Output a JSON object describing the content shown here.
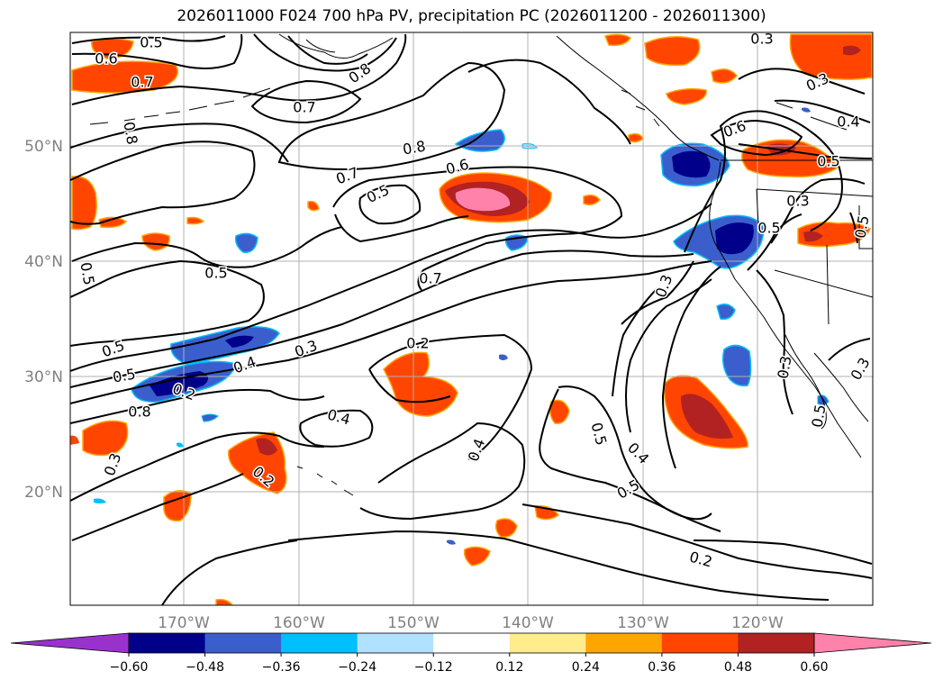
{
  "title": "2026011000 F024 700 hPa PV, precipitation PC (2026011200 - 2026011300)",
  "map": {
    "lat_ticks": [
      "50°N",
      "40°N",
      "30°N",
      "20°N"
    ],
    "lon_ticks": [
      "170°W",
      "160°W",
      "150°W",
      "140°W",
      "130°W",
      "120°W"
    ],
    "contour_labels": [
      "0.5",
      "0.6",
      "0.7",
      "0.8",
      "0.7",
      "0.8",
      "0.6",
      "0.7",
      "0.5",
      "0.5",
      "0.5",
      "0.5",
      "0.5",
      "0.4",
      "0.3",
      "0.2",
      "0.4",
      "0.2",
      "0.4",
      "0.5",
      "0.4",
      "0.5",
      "0.3",
      "0.3",
      "0.6",
      "0.4",
      "0.3",
      "0.3",
      "0.5",
      "0.5",
      "0.3",
      "0.2",
      "0.3",
      "0.7",
      "0.2",
      "0.5",
      "0.3",
      "0.8",
      "0.8",
      "0.5"
    ]
  },
  "colorbar": {
    "ticks": [
      "−0.60",
      "−0.48",
      "−0.36",
      "−0.24",
      "−0.12",
      "0.12",
      "0.24",
      "0.36",
      "0.48",
      "0.60"
    ],
    "colors": [
      "#9932cc",
      "#00008b",
      "#3a5fcd",
      "#00bfff",
      "#b0e2ff",
      "#ffffff",
      "#ffec8b",
      "#ffa500",
      "#ff4500",
      "#b22222",
      "#ff82ab"
    ]
  }
}
